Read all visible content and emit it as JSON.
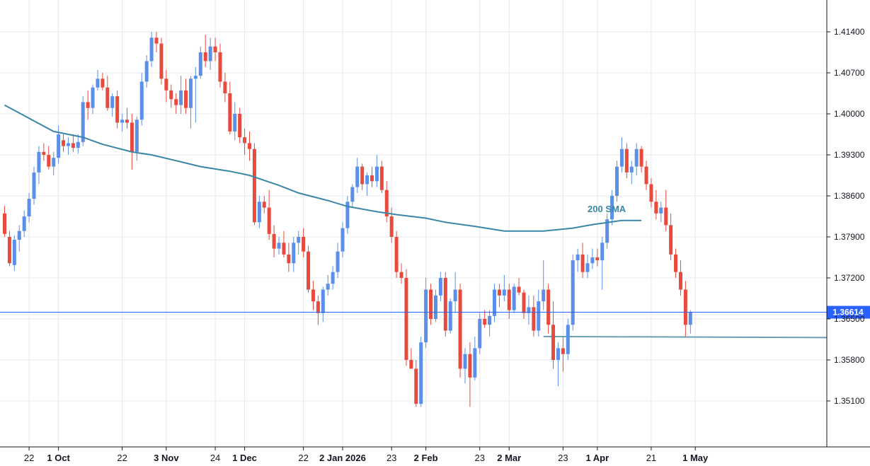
{
  "chart_data": {
    "type": "candlestick",
    "grid": true,
    "y_axis": {
      "position": "right",
      "range": [
        1.3455,
        1.4192
      ],
      "ticks": [
        "1.41400",
        "1.40700",
        "1.40000",
        "1.39300",
        "1.38600",
        "1.37900",
        "1.37200",
        "1.36500",
        "1.35800",
        "1.35100"
      ]
    },
    "x_axis": {
      "ticks": [
        {
          "label": "22",
          "bar": 5,
          "bold": false
        },
        {
          "label": "1 Oct",
          "bar": 11,
          "bold": true
        },
        {
          "label": "22",
          "bar": 24,
          "bold": false
        },
        {
          "label": "3 Nov",
          "bar": 33,
          "bold": true
        },
        {
          "label": "24",
          "bar": 43,
          "bold": false
        },
        {
          "label": "1 Dec",
          "bar": 49,
          "bold": true
        },
        {
          "label": "22",
          "bar": 61,
          "bold": false
        },
        {
          "label": "2 Jan 2026",
          "bar": 69,
          "bold": true
        },
        {
          "label": "23",
          "bar": 79,
          "bold": false
        },
        {
          "label": "2 Feb",
          "bar": 86,
          "bold": true
        },
        {
          "label": "23",
          "bar": 97,
          "bold": false
        },
        {
          "label": "2 Mar",
          "bar": 103,
          "bold": true
        },
        {
          "label": "23",
          "bar": 114,
          "bold": false
        },
        {
          "label": "1 Apr",
          "bar": 121,
          "bold": true
        },
        {
          "label": "21",
          "bar": 132,
          "bold": false
        },
        {
          "label": "1 May",
          "bar": 141,
          "bold": true
        }
      ]
    },
    "current_price": {
      "value": 1.36614,
      "label": "1.36614"
    },
    "support_level": {
      "value": 1.362,
      "from_bar": 110
    },
    "sma": {
      "name": "200 SMA",
      "color": "#3a86a7",
      "points": [
        [
          0,
          1.4015
        ],
        [
          10,
          1.397
        ],
        [
          16,
          1.396
        ],
        [
          20,
          1.3948
        ],
        [
          26,
          1.3935
        ],
        [
          30,
          1.393
        ],
        [
          36,
          1.3918
        ],
        [
          40,
          1.391
        ],
        [
          46,
          1.3902
        ],
        [
          50,
          1.3895
        ],
        [
          56,
          1.3878
        ],
        [
          60,
          1.3865
        ],
        [
          66,
          1.3852
        ],
        [
          70,
          1.3842
        ],
        [
          76,
          1.3833
        ],
        [
          80,
          1.3828
        ],
        [
          86,
          1.3822
        ],
        [
          90,
          1.3815
        ],
        [
          96,
          1.3808
        ],
        [
          102,
          1.38
        ],
        [
          110,
          1.38
        ],
        [
          116,
          1.3805
        ],
        [
          120,
          1.3811
        ],
        [
          126,
          1.3818
        ],
        [
          130,
          1.3818
        ]
      ]
    },
    "candles": [
      [
        1.383,
        1.3843,
        1.379,
        1.3795
      ],
      [
        1.379,
        1.38,
        1.374,
        1.3745
      ],
      [
        1.3742,
        1.3792,
        1.3732,
        1.3785
      ],
      [
        1.3785,
        1.381,
        1.3765,
        1.38
      ],
      [
        1.38,
        1.3835,
        1.379,
        1.3825
      ],
      [
        1.3825,
        1.3865,
        1.3815,
        1.3855
      ],
      [
        1.3855,
        1.391,
        1.3845,
        1.39
      ],
      [
        1.39,
        1.3945,
        1.388,
        1.3935
      ],
      [
        1.3935,
        1.395,
        1.392,
        1.393
      ],
      [
        1.393,
        1.3945,
        1.3905,
        1.391
      ],
      [
        1.391,
        1.3935,
        1.3895,
        1.3925
      ],
      [
        1.3925,
        1.398,
        1.3915,
        1.3965
      ],
      [
        1.3955,
        1.3965,
        1.3935,
        1.3945
      ],
      [
        1.3945,
        1.396,
        1.393,
        1.395
      ],
      [
        1.395,
        1.3965,
        1.3935,
        1.3942
      ],
      [
        1.3942,
        1.3965,
        1.3932,
        1.3952
      ],
      [
        1.3952,
        1.403,
        1.3945,
        1.402
      ],
      [
        1.402,
        1.404,
        1.399,
        1.401
      ],
      [
        1.401,
        1.405,
        1.4,
        1.4045
      ],
      [
        1.4045,
        1.4075,
        1.404,
        1.406
      ],
      [
        1.406,
        1.407,
        1.404,
        1.4045
      ],
      [
        1.4045,
        1.4065,
        1.4005,
        1.401
      ],
      [
        1.401,
        1.4035,
        1.3995,
        1.403
      ],
      [
        1.403,
        1.404,
        1.3975,
        1.3985
      ],
      [
        1.3985,
        1.4,
        1.397,
        1.399
      ],
      [
        1.399,
        1.401,
        1.3975,
        1.3985
      ],
      [
        1.3985,
        1.4,
        1.3905,
        1.3935
      ],
      [
        1.3935,
        1.3995,
        1.392,
        1.399
      ],
      [
        1.399,
        1.407,
        1.398,
        1.4055
      ],
      [
        1.4055,
        1.41,
        1.4045,
        1.409
      ],
      [
        1.409,
        1.414,
        1.408,
        1.413
      ],
      [
        1.413,
        1.414,
        1.4105,
        1.412
      ],
      [
        1.412,
        1.413,
        1.405,
        1.406
      ],
      [
        1.406,
        1.4075,
        1.402,
        1.404
      ],
      [
        1.404,
        1.405,
        1.401,
        1.4025
      ],
      [
        1.4025,
        1.4035,
        1.4,
        1.4015
      ],
      [
        1.4015,
        1.4065,
        1.4,
        1.404
      ],
      [
        1.404,
        1.406,
        1.4,
        1.401
      ],
      [
        1.401,
        1.4065,
        1.3975,
        1.406
      ],
      [
        1.406,
        1.408,
        1.3985,
        1.4065
      ],
      [
        1.4065,
        1.4115,
        1.406,
        1.4105
      ],
      [
        1.4105,
        1.4135,
        1.408,
        1.409
      ],
      [
        1.409,
        1.413,
        1.4075,
        1.4115
      ],
      [
        1.4115,
        1.413,
        1.409,
        1.4105
      ],
      [
        1.4105,
        1.412,
        1.4045,
        1.4055
      ],
      [
        1.4055,
        1.407,
        1.402,
        1.4035
      ],
      [
        1.4035,
        1.4055,
        1.3965,
        1.397
      ],
      [
        1.397,
        1.402,
        1.3955,
        1.4
      ],
      [
        1.4,
        1.401,
        1.395,
        1.396
      ],
      [
        1.396,
        1.3975,
        1.393,
        1.395
      ],
      [
        1.395,
        1.397,
        1.392,
        1.394
      ],
      [
        1.394,
        1.395,
        1.381,
        1.3815
      ],
      [
        1.3815,
        1.386,
        1.3805,
        1.385
      ],
      [
        1.385,
        1.386,
        1.383,
        1.384
      ],
      [
        1.384,
        1.387,
        1.3785,
        1.3795
      ],
      [
        1.3795,
        1.381,
        1.3755,
        1.377
      ],
      [
        1.377,
        1.379,
        1.376,
        1.378
      ],
      [
        1.378,
        1.38,
        1.3755,
        1.376
      ],
      [
        1.376,
        1.378,
        1.373,
        1.3745
      ],
      [
        1.3745,
        1.379,
        1.373,
        1.378
      ],
      [
        1.378,
        1.38,
        1.376,
        1.379
      ],
      [
        1.379,
        1.3805,
        1.3755,
        1.3765
      ],
      [
        1.3765,
        1.3775,
        1.3695,
        1.37
      ],
      [
        1.37,
        1.3715,
        1.3665,
        1.368
      ],
      [
        1.368,
        1.369,
        1.364,
        1.366
      ],
      [
        1.366,
        1.3705,
        1.3645,
        1.37
      ],
      [
        1.37,
        1.3725,
        1.369,
        1.371
      ],
      [
        1.371,
        1.374,
        1.37,
        1.373
      ],
      [
        1.373,
        1.378,
        1.372,
        1.3765
      ],
      [
        1.3765,
        1.3815,
        1.3755,
        1.3805
      ],
      [
        1.3805,
        1.386,
        1.3795,
        1.385
      ],
      [
        1.385,
        1.388,
        1.384,
        1.3875
      ],
      [
        1.3875,
        1.3925,
        1.3865,
        1.391
      ],
      [
        1.391,
        1.3915,
        1.387,
        1.388
      ],
      [
        1.388,
        1.39,
        1.386,
        1.3895
      ],
      [
        1.3895,
        1.391,
        1.3875,
        1.3885
      ],
      [
        1.3885,
        1.393,
        1.3875,
        1.391
      ],
      [
        1.391,
        1.392,
        1.3865,
        1.387
      ],
      [
        1.387,
        1.3885,
        1.3815,
        1.3825
      ],
      [
        1.3825,
        1.384,
        1.378,
        1.379
      ],
      [
        1.379,
        1.38,
        1.372,
        1.373
      ],
      [
        1.373,
        1.3745,
        1.371,
        1.372
      ],
      [
        1.372,
        1.3735,
        1.357,
        1.358
      ],
      [
        1.358,
        1.36,
        1.3565,
        1.3565
      ],
      [
        1.3565,
        1.358,
        1.35,
        1.3505
      ],
      [
        1.3505,
        1.362,
        1.35,
        1.361
      ],
      [
        1.361,
        1.372,
        1.36,
        1.37
      ],
      [
        1.37,
        1.371,
        1.364,
        1.365
      ],
      [
        1.365,
        1.37,
        1.3645,
        1.369
      ],
      [
        1.369,
        1.373,
        1.368,
        1.372
      ],
      [
        1.372,
        1.373,
        1.362,
        1.363
      ],
      [
        1.363,
        1.3685,
        1.3625,
        1.368
      ],
      [
        1.368,
        1.373,
        1.366,
        1.37
      ],
      [
        1.37,
        1.371,
        1.355,
        1.3565
      ],
      [
        1.3565,
        1.36,
        1.354,
        1.359
      ],
      [
        1.359,
        1.361,
        1.35,
        1.355
      ],
      [
        1.355,
        1.362,
        1.3545,
        1.36
      ],
      [
        1.36,
        1.366,
        1.359,
        1.365
      ],
      [
        1.365,
        1.3665,
        1.3635,
        1.364
      ],
      [
        1.364,
        1.3665,
        1.362,
        1.3655
      ],
      [
        1.3655,
        1.371,
        1.3645,
        1.37
      ],
      [
        1.37,
        1.371,
        1.367,
        1.369
      ],
      [
        1.369,
        1.3725,
        1.368,
        1.37
      ],
      [
        1.37,
        1.371,
        1.365,
        1.3665
      ],
      [
        1.3665,
        1.371,
        1.366,
        1.3705
      ],
      [
        1.3705,
        1.372,
        1.369,
        1.3695
      ],
      [
        1.3695,
        1.37,
        1.365,
        1.366
      ],
      [
        1.366,
        1.369,
        1.364,
        1.367
      ],
      [
        1.367,
        1.369,
        1.362,
        1.363
      ],
      [
        1.363,
        1.37,
        1.362,
        1.368
      ],
      [
        1.368,
        1.375,
        1.3665,
        1.37
      ],
      [
        1.37,
        1.371,
        1.3625,
        1.364
      ],
      [
        1.364,
        1.368,
        1.3565,
        1.358
      ],
      [
        1.358,
        1.361,
        1.3535,
        1.36
      ],
      [
        1.36,
        1.362,
        1.356,
        1.359
      ],
      [
        1.359,
        1.365,
        1.358,
        1.364
      ],
      [
        1.364,
        1.376,
        1.363,
        1.375
      ],
      [
        1.375,
        1.377,
        1.373,
        1.376
      ],
      [
        1.376,
        1.378,
        1.372,
        1.373
      ],
      [
        1.373,
        1.376,
        1.372,
        1.3745
      ],
      [
        1.3745,
        1.377,
        1.3735,
        1.3755
      ],
      [
        1.3755,
        1.377,
        1.374,
        1.375
      ],
      [
        1.375,
        1.379,
        1.37,
        1.378
      ],
      [
        1.378,
        1.383,
        1.377,
        1.382
      ],
      [
        1.382,
        1.387,
        1.381,
        1.386
      ],
      [
        1.386,
        1.392,
        1.385,
        1.391
      ],
      [
        1.391,
        1.396,
        1.39,
        1.394
      ],
      [
        1.394,
        1.395,
        1.389,
        1.39
      ],
      [
        1.39,
        1.392,
        1.388,
        1.391
      ],
      [
        1.391,
        1.395,
        1.3895,
        1.394
      ],
      [
        1.394,
        1.3945,
        1.39,
        1.391
      ],
      [
        1.391,
        1.392,
        1.387,
        1.388
      ],
      [
        1.388,
        1.389,
        1.384,
        1.385
      ],
      [
        1.385,
        1.387,
        1.382,
        1.383
      ],
      [
        1.383,
        1.385,
        1.3815,
        1.384
      ],
      [
        1.384,
        1.387,
        1.38,
        1.381
      ],
      [
        1.381,
        1.383,
        1.375,
        1.376
      ],
      [
        1.376,
        1.377,
        1.372,
        1.373
      ],
      [
        1.373,
        1.375,
        1.369,
        1.37
      ],
      [
        1.37,
        1.3715,
        1.362,
        1.364
      ],
      [
        1.364,
        1.3665,
        1.3625,
        1.3661
      ]
    ]
  }
}
